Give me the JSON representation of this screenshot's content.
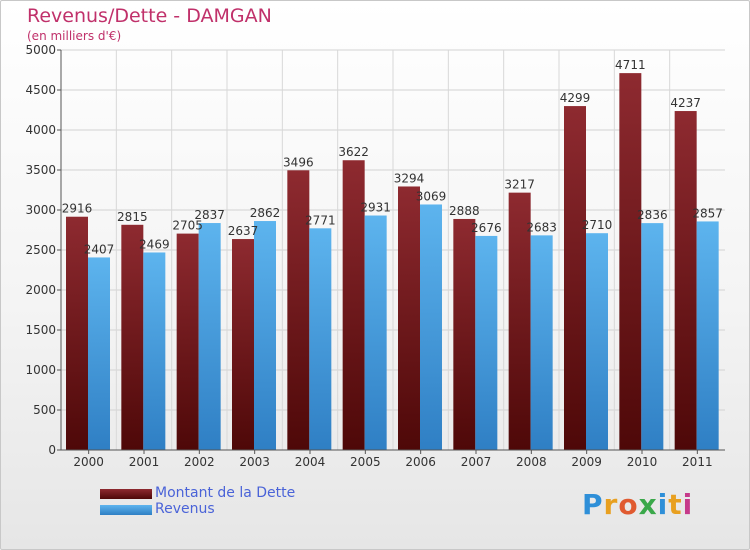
{
  "title": "Revenus/Dette - DAMGAN",
  "subtitle": "(en milliers d'€)",
  "brand": "Proxiti",
  "colors": {
    "title": "#c0306a",
    "dette": "#7a1a20",
    "revenus": "#4fa8e6",
    "legend_text": "#4a63d8"
  },
  "chart_data": {
    "type": "bar",
    "title": "Revenus/Dette - DAMGAN",
    "subtitle": "(en milliers d'€)",
    "categories": [
      "2000",
      "2001",
      "2002",
      "2003",
      "2004",
      "2005",
      "2006",
      "2007",
      "2008",
      "2009",
      "2010",
      "2011"
    ],
    "series": [
      {
        "name": "Montant de la Dette",
        "color": "#7a1a20",
        "values": [
          2916,
          2815,
          2705,
          2637,
          3496,
          3622,
          3294,
          2888,
          3217,
          4299,
          4711,
          4237
        ]
      },
      {
        "name": "Revenus",
        "color": "#4fa8e6",
        "values": [
          2407,
          2469,
          2837,
          2862,
          2771,
          2931,
          3069,
          2676,
          2683,
          2710,
          2836,
          2857
        ]
      }
    ],
    "ylim": [
      0,
      5000
    ],
    "yticks": [
      0,
      500,
      1000,
      1500,
      2000,
      2500,
      3000,
      3500,
      4000,
      4500,
      5000
    ],
    "grid": true,
    "legend": "bottom-left",
    "xlabel": "",
    "ylabel": ""
  }
}
